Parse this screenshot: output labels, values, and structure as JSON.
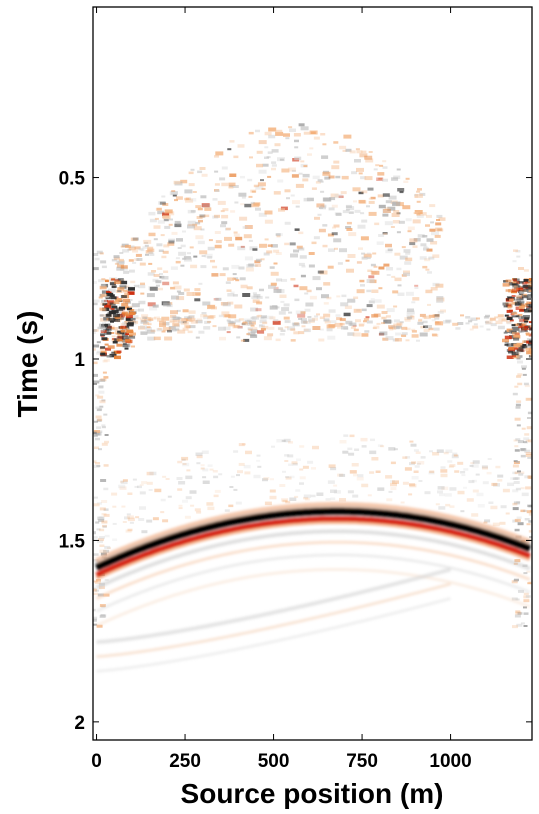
{
  "chart_data": {
    "type": "heatmap",
    "title": "",
    "xlabel": "Source position (m)",
    "ylabel": "Time (s)",
    "xlim": [
      -10,
      1230
    ],
    "ylim": [
      2.05,
      0.03
    ],
    "x_ticks": [
      0,
      250,
      500,
      750,
      1000
    ],
    "x_tick_labels": [
      "0",
      "250",
      "500",
      "750",
      "1000"
    ],
    "y_ticks": [
      0.5,
      1,
      1.5,
      2
    ],
    "y_tick_labels": [
      "0.5",
      "1",
      "1.5",
      "2"
    ],
    "grid": false,
    "colormap": [
      "#000000",
      "#bdbdbd",
      "#ffffff",
      "#f2a66a",
      "#cc1100"
    ],
    "events": [
      {
        "name": "main-reflection",
        "apex_x": 680,
        "apex_t": 1.42,
        "left_t": 1.575,
        "right_t": 1.525,
        "x_start": 0,
        "x_end": 1230
      },
      {
        "name": "secondary-arrival",
        "x_start": 0,
        "x_end": 1000,
        "t_start": 1.78,
        "t_end": 1.58
      }
    ]
  }
}
